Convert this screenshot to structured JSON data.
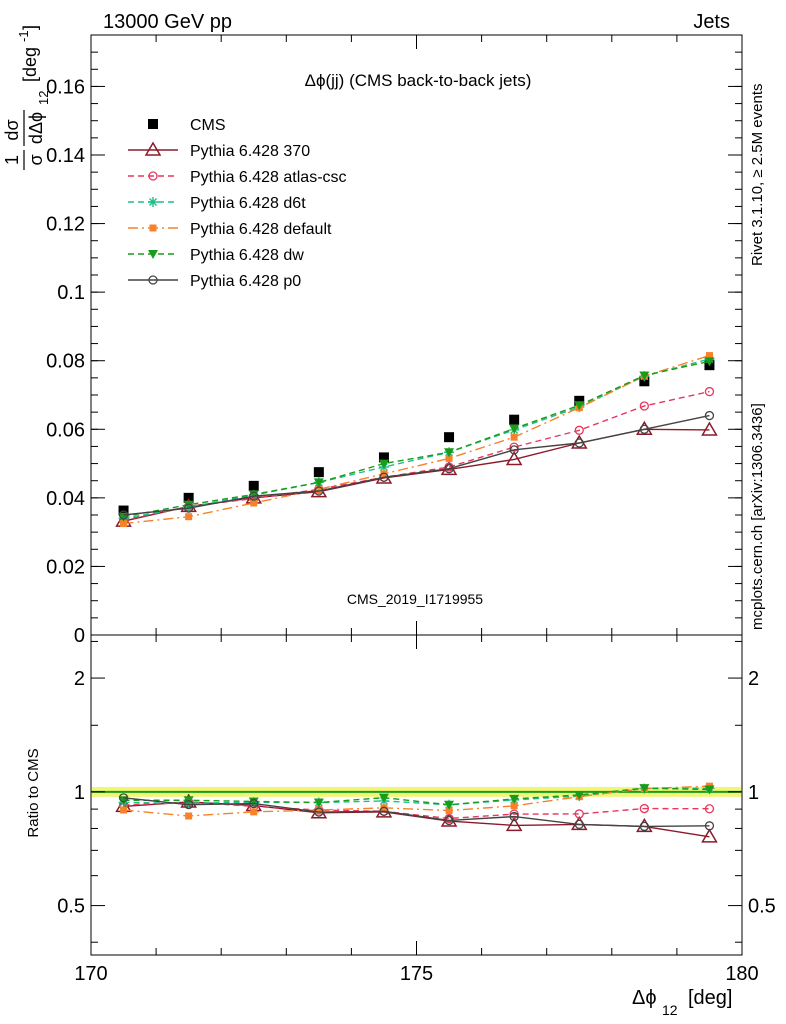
{
  "header": {
    "energy_label": "13000 GeV pp",
    "category_label": "Jets"
  },
  "side_labels": {
    "rivet": "Rivet 3.1.10, ≥ 2.5M events",
    "mcplots": "mcplots.cern.ch [arXiv:1306.3436]"
  },
  "chart_data": [
    {
      "type": "scatter",
      "title": "Δϕ(jj) (CMS back-to-back jets)",
      "watermark": "CMS_2019_I1719955",
      "ylabel_num": "1",
      "ylabel_den": "σ",
      "ylabel_dnum": "dσ",
      "ylabel_dden": "dΔϕ",
      "ylabel_sub": "12",
      "ylabel_unit": "[deg",
      "ylabel_unit_sup": "-1",
      "ylabel_close": "]",
      "xlim": [
        170,
        180
      ],
      "ylim": [
        0,
        0.175
      ],
      "yticks": [
        "0",
        "0.02",
        "0.04",
        "0.06",
        "0.08",
        "0.1",
        "0.12",
        "0.14",
        "0.16"
      ],
      "ytick_values": [
        0,
        0.02,
        0.04,
        0.06,
        0.08,
        0.1,
        0.12,
        0.14,
        0.16
      ],
      "legend_position": "top-left",
      "x": [
        170.5,
        171.5,
        172.5,
        173.5,
        174.5,
        175.5,
        176.5,
        177.5,
        178.5,
        179.5
      ],
      "series": [
        {
          "name": "CMS",
          "color": "#000000",
          "marker": "square",
          "dash": "none",
          "values": [
            0.0363,
            0.04,
            0.0435,
            0.0475,
            0.0518,
            0.0577,
            0.0628,
            0.0683,
            0.074,
            0.0787
          ]
        },
        {
          "name": "Pythia 6.428 370",
          "color": "#8b1a2b",
          "marker": "triangle-open",
          "dash": "solid",
          "values": [
            0.0332,
            0.0375,
            0.04,
            0.0418,
            0.0458,
            0.0483,
            0.0512,
            0.056,
            0.06,
            0.0598
          ]
        },
        {
          "name": "Pythia 6.428 atlas-csc",
          "color": "#e8365d",
          "marker": "circle-open",
          "dash": "6,4",
          "values": [
            0.0335,
            0.0375,
            0.0398,
            0.0425,
            0.046,
            0.049,
            0.0548,
            0.0597,
            0.0668,
            0.071
          ]
        },
        {
          "name": "Pythia 6.428 d6t",
          "color": "#1fbf8a",
          "marker": "star",
          "dash": "6,4",
          "values": [
            0.034,
            0.0373,
            0.0408,
            0.0445,
            0.049,
            0.0533,
            0.0598,
            0.0665,
            0.0755,
            0.0805
          ]
        },
        {
          "name": "Pythia 6.428 default",
          "color": "#f7822a",
          "marker": "square-small",
          "dash": "10,4,2,4",
          "values": [
            0.0325,
            0.0345,
            0.0385,
            0.0425,
            0.047,
            0.0515,
            0.0577,
            0.0663,
            0.0755,
            0.0815
          ]
        },
        {
          "name": "Pythia 6.428 dw",
          "color": "#1a9c1a",
          "marker": "triangle-down",
          "dash": "6,4",
          "values": [
            0.0345,
            0.038,
            0.041,
            0.0445,
            0.05,
            0.0533,
            0.0602,
            0.067,
            0.0757,
            0.0798
          ]
        },
        {
          "name": "Pythia 6.428 p0",
          "color": "#444444",
          "marker": "circle-open",
          "dash": "solid",
          "values": [
            0.035,
            0.037,
            0.0405,
            0.042,
            0.046,
            0.0485,
            0.054,
            0.056,
            0.06,
            0.064
          ]
        }
      ]
    },
    {
      "type": "scatter",
      "ylabel": "Ratio to CMS",
      "xlabel": "Δϕ",
      "xlabel_sub": "12",
      "xlabel_unit": "[deg]",
      "xlim": [
        170,
        180
      ],
      "ylim": [
        0.37,
        2.6
      ],
      "log_y": true,
      "xticks": [
        "170",
        "175",
        "180"
      ],
      "xtick_values": [
        170,
        175,
        180
      ],
      "yticks": [
        "0.5",
        "1",
        "2"
      ],
      "ytick_values": [
        0.5,
        1,
        2
      ],
      "ytick_labels_right": [
        "0.5",
        "1",
        "2"
      ],
      "reference_band": [
        0.97,
        1.03
      ],
      "x": [
        170.5,
        171.5,
        172.5,
        173.5,
        174.5,
        175.5,
        176.5,
        177.5,
        178.5,
        179.5
      ],
      "series": [
        {
          "name": "Pythia 6.428 370",
          "color": "#8b1a2b",
          "marker": "triangle-open",
          "dash": "solid",
          "values": [
            0.915,
            0.94,
            0.92,
            0.88,
            0.885,
            0.837,
            0.815,
            0.82,
            0.81,
            0.76
          ]
        },
        {
          "name": "Pythia 6.428 atlas-csc",
          "color": "#e8365d",
          "marker": "circle-open",
          "dash": "6,4",
          "values": [
            0.922,
            0.94,
            0.915,
            0.895,
            0.888,
            0.85,
            0.873,
            0.874,
            0.903,
            0.902
          ]
        },
        {
          "name": "Pythia 6.428 d6t",
          "color": "#1fbf8a",
          "marker": "star",
          "dash": "6,4",
          "values": [
            0.937,
            0.933,
            0.938,
            0.937,
            0.946,
            0.924,
            0.952,
            0.974,
            1.02,
            1.022
          ]
        },
        {
          "name": "Pythia 6.428 default",
          "color": "#f7822a",
          "marker": "square-small",
          "dash": "10,4,2,4",
          "values": [
            0.895,
            0.863,
            0.885,
            0.895,
            0.907,
            0.892,
            0.918,
            0.971,
            1.02,
            1.035
          ]
        },
        {
          "name": "Pythia 6.428 dw",
          "color": "#1a9c1a",
          "marker": "triangle-down",
          "dash": "6,4",
          "values": [
            0.95,
            0.95,
            0.943,
            0.937,
            0.965,
            0.924,
            0.958,
            0.981,
            1.023,
            1.014
          ]
        },
        {
          "name": "Pythia 6.428 p0",
          "color": "#444444",
          "marker": "circle-open",
          "dash": "solid",
          "values": [
            0.964,
            0.925,
            0.931,
            0.884,
            0.888,
            0.84,
            0.86,
            0.82,
            0.81,
            0.813
          ]
        }
      ]
    }
  ]
}
